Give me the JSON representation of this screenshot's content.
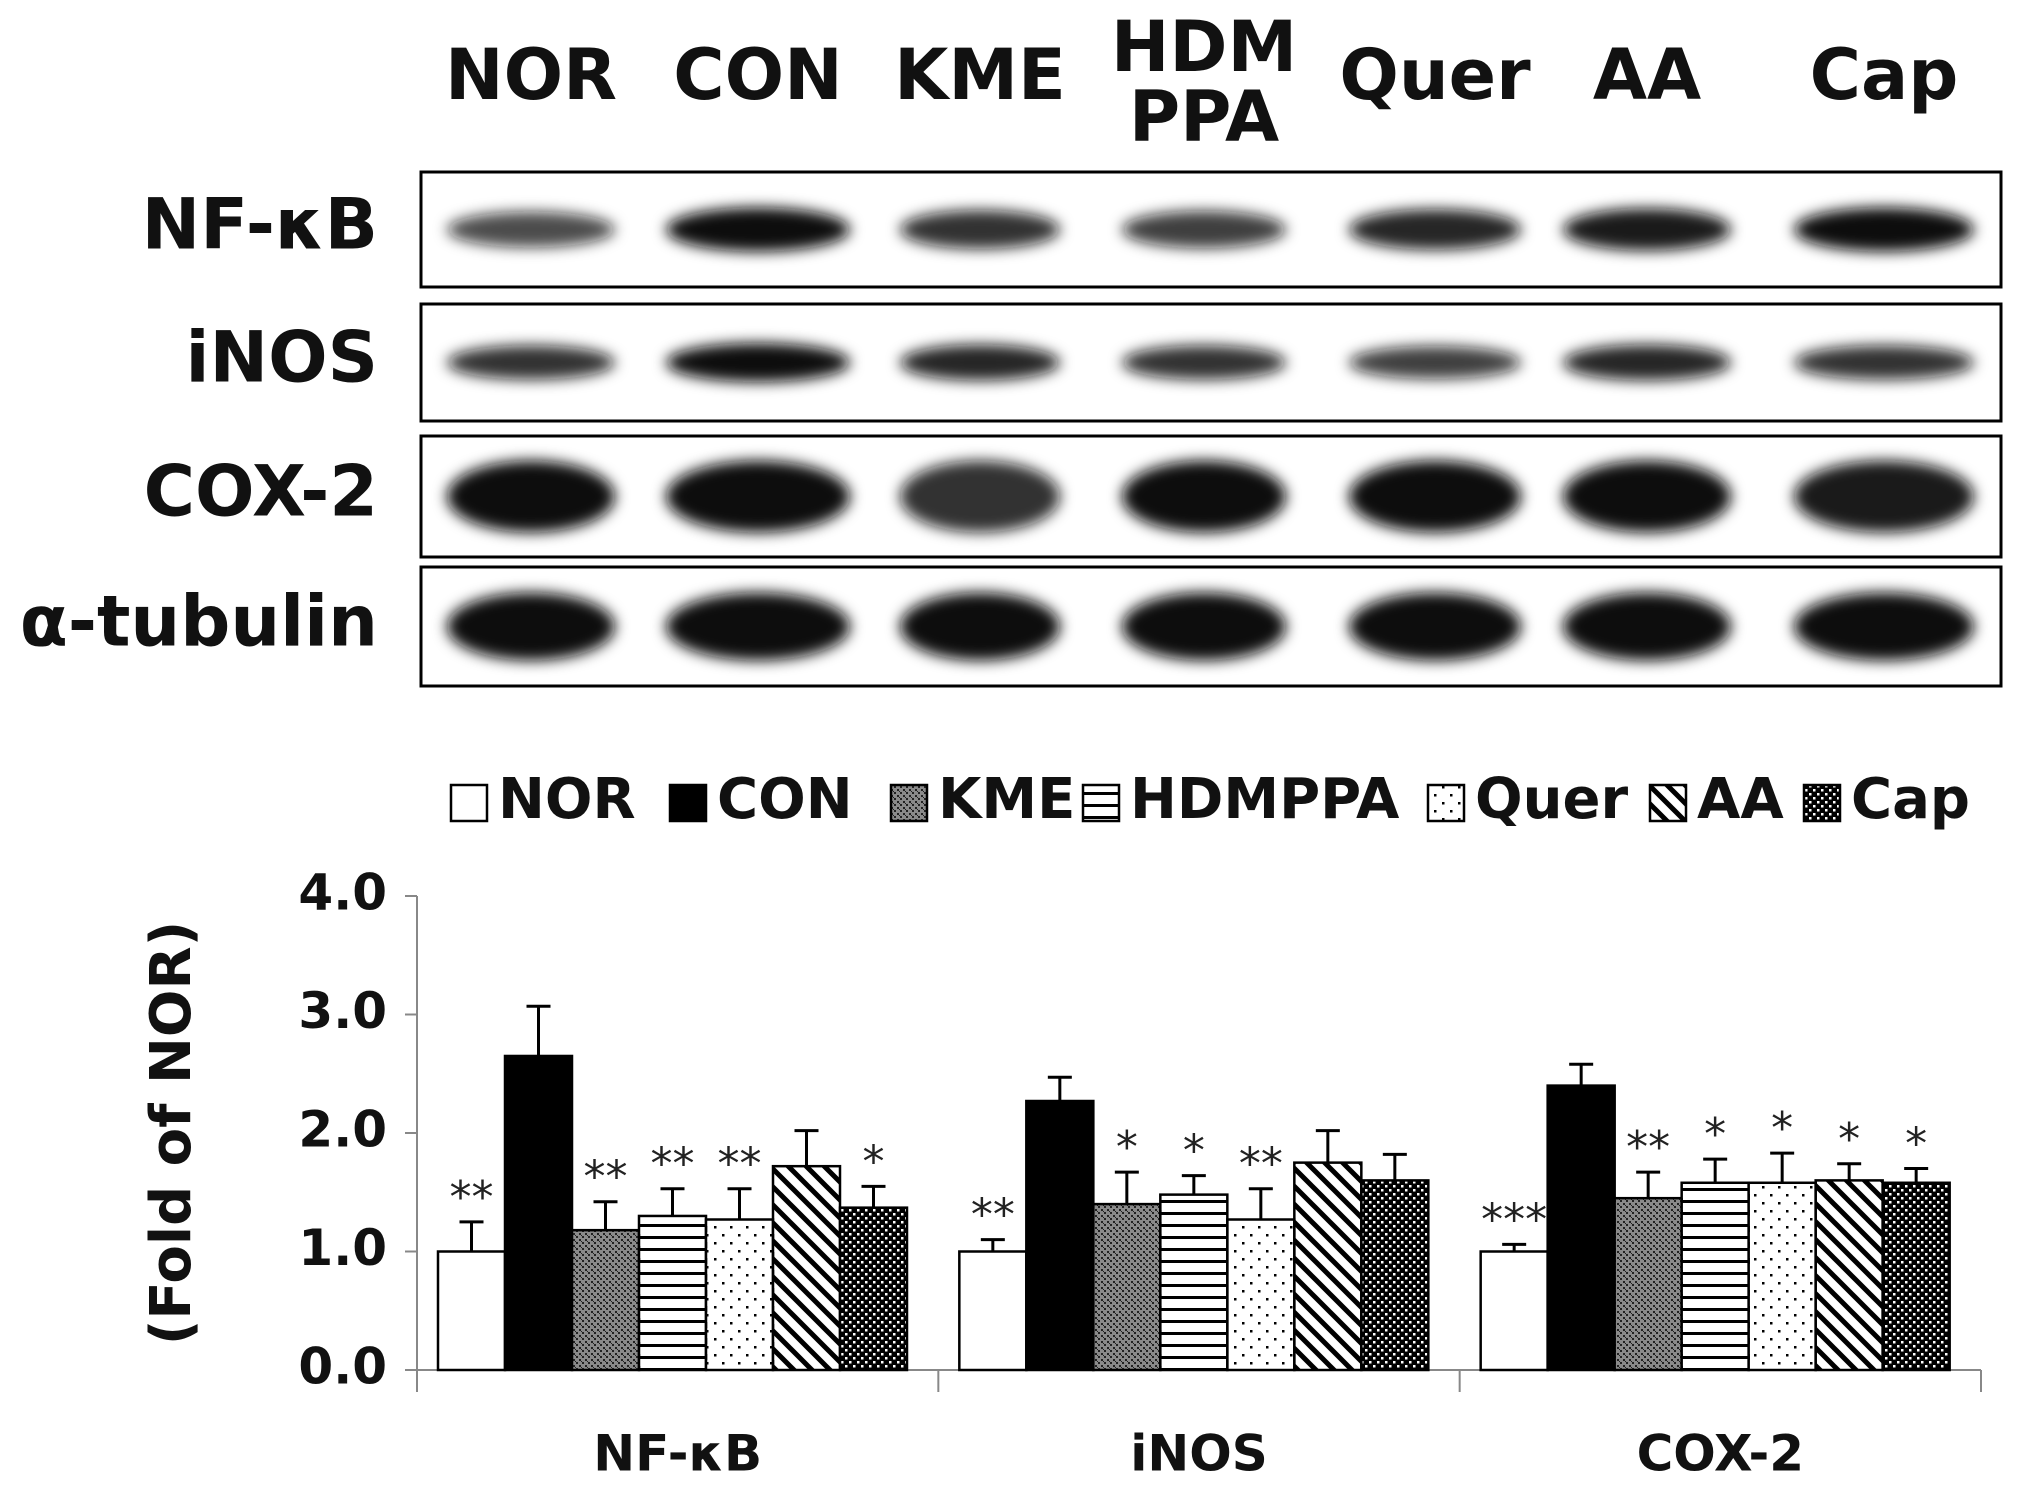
{
  "blot": {
    "lanes": [
      [
        "NOR"
      ],
      [
        "CON"
      ],
      [
        "KME"
      ],
      [
        "HDM",
        "PPA"
      ],
      [
        "Quer"
      ],
      [
        "AA"
      ],
      [
        "Cap"
      ]
    ],
    "rows": [
      "NF-κB",
      "iNOS",
      "COX-2",
      "α-tubulin"
    ]
  },
  "chart_data": {
    "type": "bar",
    "y_label": "(Fold of NOR)",
    "categories": [
      "NF-κB",
      "iNOS",
      "COX-2"
    ],
    "series": [
      {
        "name": "NOR",
        "color": "#ffffff",
        "pattern": "none",
        "values": [
          1.0,
          1.0,
          1.0
        ],
        "errors": [
          0.25,
          0.1,
          0.06
        ],
        "significance": [
          "**",
          "**",
          "***"
        ]
      },
      {
        "name": "CON",
        "color": "#000000",
        "pattern": "solid",
        "values": [
          2.65,
          2.27,
          2.4
        ],
        "errors": [
          0.42,
          0.2,
          0.18
        ],
        "significance": [
          null,
          null,
          null
        ]
      },
      {
        "name": "KME",
        "color": "#8a8a8a",
        "pattern": "fine-dots",
        "values": [
          1.18,
          1.4,
          1.45
        ],
        "errors": [
          0.24,
          0.27,
          0.22
        ],
        "significance": [
          "**",
          "*",
          "**"
        ]
      },
      {
        "name": "HDMPPA",
        "color": "#ffffff",
        "pattern": "hlines",
        "values": [
          1.3,
          1.48,
          1.58
        ],
        "errors": [
          0.23,
          0.16,
          0.2
        ],
        "significance": [
          "**",
          "*",
          "*"
        ]
      },
      {
        "name": "Quer",
        "color": "#ffffff",
        "pattern": "dots",
        "values": [
          1.27,
          1.27,
          1.58
        ],
        "errors": [
          0.26,
          0.26,
          0.25
        ],
        "significance": [
          "**",
          "**",
          "*"
        ]
      },
      {
        "name": "AA",
        "color": "#ffffff",
        "pattern": "diagonal",
        "values": [
          1.72,
          1.75,
          1.6
        ],
        "errors": [
          0.3,
          0.27,
          0.14
        ],
        "significance": [
          null,
          null,
          "*"
        ]
      },
      {
        "name": "Cap",
        "color": "#000000",
        "pattern": "checker",
        "values": [
          1.37,
          1.6,
          1.58
        ],
        "errors": [
          0.18,
          0.22,
          0.12
        ],
        "significance": [
          "*",
          null,
          "*"
        ]
      }
    ],
    "ylim": [
      0,
      4
    ],
    "yticks": [
      {
        "value": 0,
        "label": "0.0"
      },
      {
        "value": 1,
        "label": "1.0"
      },
      {
        "value": 2,
        "label": "2.0"
      },
      {
        "value": 3,
        "label": "3.0"
      },
      {
        "value": 4,
        "label": "4.0"
      }
    ],
    "legend": "top"
  }
}
